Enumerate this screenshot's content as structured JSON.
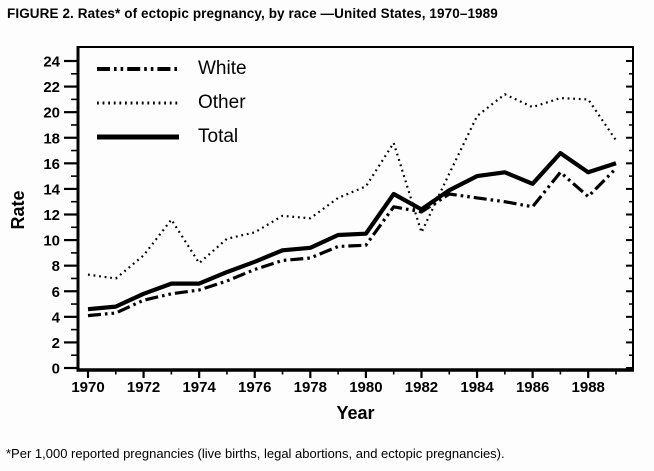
{
  "title": "FIGURE 2. Rates* of ectopic pregnancy, by race —United States, 1970–1989",
  "footnote": "*Per 1,000 reported pregnancies (live births, legal abortions, and ectopic pregnancies).",
  "colors": {
    "line": "#000000",
    "background": "#fdfdfd"
  },
  "chart_data": {
    "type": "line",
    "title": "Rates of ectopic pregnancy, by race — United States, 1970–1989",
    "xlabel": "Year",
    "ylabel": "Rate",
    "x": [
      1970,
      1971,
      1972,
      1973,
      1974,
      1975,
      1976,
      1977,
      1978,
      1979,
      1980,
      1981,
      1982,
      1983,
      1984,
      1985,
      1986,
      1987,
      1988,
      1989
    ],
    "series": [
      {
        "name": "White",
        "style": "dashdot",
        "values": [
          4.1,
          4.3,
          5.3,
          5.8,
          6.1,
          6.8,
          7.7,
          8.4,
          8.6,
          9.5,
          9.6,
          12.6,
          12.2,
          13.6,
          13.3,
          13.0,
          12.6,
          15.3,
          13.4,
          15.6
        ]
      },
      {
        "name": "Other",
        "style": "dotted",
        "values": [
          7.3,
          7.0,
          8.8,
          11.6,
          8.2,
          10.1,
          10.6,
          11.9,
          11.7,
          13.3,
          14.2,
          17.6,
          10.6,
          15.2,
          19.7,
          21.4,
          20.4,
          21.1,
          21.0,
          17.8
        ]
      },
      {
        "name": "Total",
        "style": "solid",
        "values": [
          4.6,
          4.8,
          5.8,
          6.6,
          6.6,
          7.5,
          8.3,
          9.2,
          9.4,
          10.4,
          10.5,
          13.6,
          12.4,
          13.9,
          15.0,
          15.3,
          14.4,
          16.8,
          15.3,
          16.0
        ]
      }
    ],
    "ylim": [
      0,
      24
    ],
    "yticks": [
      0,
      2,
      4,
      6,
      8,
      10,
      12,
      14,
      16,
      18,
      20,
      22,
      24
    ],
    "xticks": [
      1970,
      1972,
      1974,
      1976,
      1978,
      1980,
      1982,
      1984,
      1986,
      1988
    ],
    "legend_position": "top-left",
    "grid": false
  }
}
